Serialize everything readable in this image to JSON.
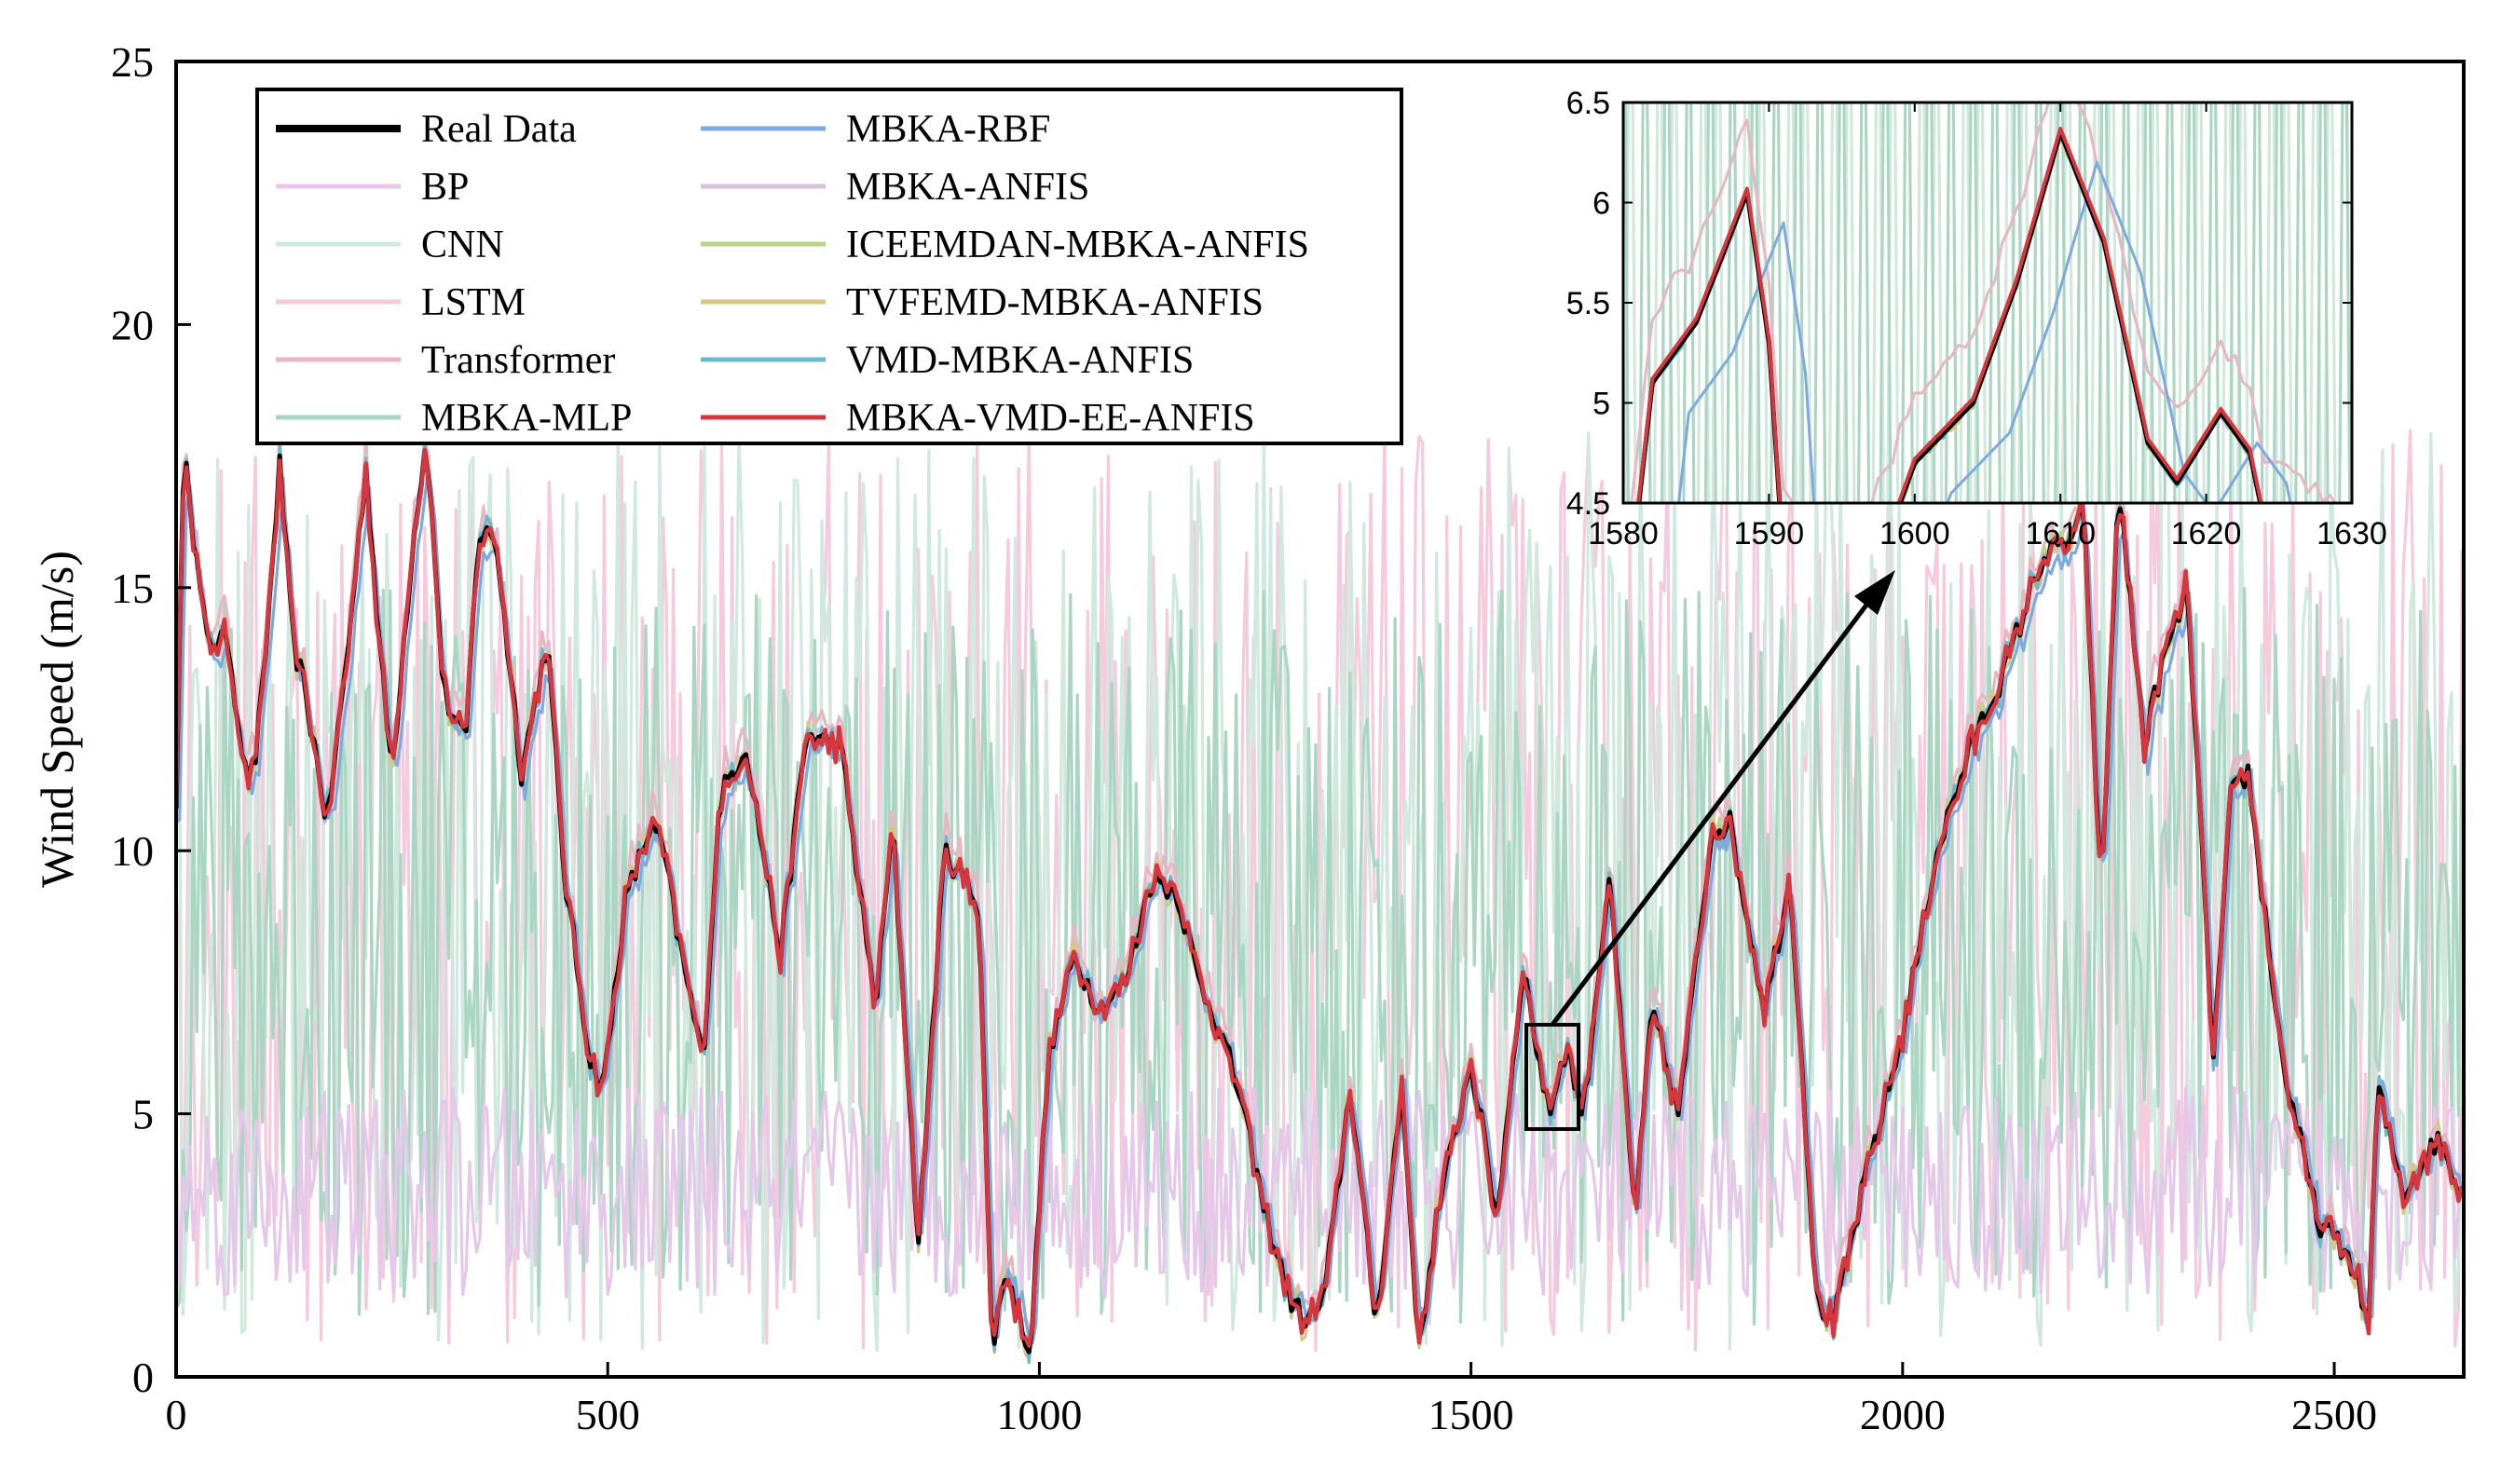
{
  "chart_data": {
    "type": "line",
    "title": "",
    "xlabel": "",
    "ylabel": "Wind Speed (m/s)",
    "xlim": [
      0,
      2650
    ],
    "ylim": [
      0,
      25
    ],
    "x_ticks": [
      "0",
      "500",
      "1000",
      "1500",
      "2000",
      "2500"
    ],
    "y_ticks": [
      "0",
      "5",
      "10",
      "15",
      "20",
      "25"
    ],
    "series": [
      {
        "name": "Real Data",
        "color": "#000000",
        "kind": "real"
      },
      {
        "name": "BP",
        "color": "#e5c7ea",
        "kind": "noise_low"
      },
      {
        "name": "CNN",
        "color": "#cfe9de",
        "kind": "noise_full"
      },
      {
        "name": "LSTM",
        "color": "#f6c9dc",
        "kind": "noise_full"
      },
      {
        "name": "Transformer",
        "color": "#e7b6c3",
        "kind": "offset"
      },
      {
        "name": "MBKA-MLP",
        "color": "#a9d6c3",
        "kind": "noise_mid"
      },
      {
        "name": "MBKA-RBF",
        "color": "#7ea9de",
        "kind": "lag"
      },
      {
        "name": "MBKA-ANFIS",
        "color": "#d7c1d9",
        "kind": "close"
      },
      {
        "name": "ICEEMDAN-MBKA-ANFIS",
        "color": "#b8d486",
        "kind": "close"
      },
      {
        "name": "TVFEMD-MBKA-ANFIS",
        "color": "#d8c685",
        "kind": "close"
      },
      {
        "name": "VMD-MBKA-ANFIS",
        "color": "#6cb9cc",
        "kind": "close"
      },
      {
        "name": "MBKA-VMD-EE-ANFIS",
        "color": "#d6373e",
        "kind": "best"
      }
    ],
    "real_data_keypoints": {
      "x": [
        0,
        10,
        20,
        35,
        60,
        80,
        90,
        100,
        120,
        135,
        150,
        175,
        200,
        220,
        235,
        250,
        275,
        290,
        310,
        335,
        350,
        370,
        400,
        430,
        450,
        480,
        495,
        520,
        550,
        565,
        580,
        610,
        630,
        660,
        700,
        730,
        770,
        810,
        830,
        860,
        890,
        930,
        945,
        960,
        990,
        1010,
        1040,
        1070,
        1100,
        1130,
        1160,
        1185,
        1200,
        1230,
        1260,
        1290,
        1310,
        1330,
        1360,
        1390,
        1420,
        1440,
        1460,
        1500,
        1530,
        1560,
        1590,
        1610,
        1630,
        1660,
        1690,
        1710,
        1740,
        1780,
        1800,
        1840,
        1870,
        1900,
        1920,
        1960,
        2000,
        2040,
        2080,
        2120,
        2160,
        2200,
        2210,
        2230,
        2250,
        2280,
        2300,
        2330,
        2360,
        2380,
        2400,
        2440,
        2480,
        2520,
        2540,
        2550,
        2580,
        2620,
        2650
      ],
      "y": [
        11,
        18,
        16,
        14,
        14,
        11.5,
        11.5,
        13,
        17.3,
        14,
        13,
        10.5,
        14,
        17.3,
        14,
        11.5,
        16,
        17.8,
        13,
        12,
        16,
        16,
        11.5,
        14,
        9.5,
        6,
        5.5,
        9,
        10.5,
        10,
        8.5,
        6,
        11,
        12,
        8,
        12.2,
        12,
        7,
        10.5,
        2.5,
        10,
        9,
        0.5,
        2,
        0.5,
        6,
        8,
        7,
        7.5,
        9.5,
        9.2,
        7.5,
        7,
        5.5,
        3.2,
        1.5,
        1,
        1.5,
        5.5,
        1,
        5.5,
        0.5,
        3,
        6,
        3,
        7.8,
        5,
        6.3,
        5,
        9.5,
        3,
        7,
        5,
        10.5,
        10.5,
        7,
        9.5,
        1.5,
        1,
        4,
        6.5,
        10,
        12,
        13.5,
        15.5,
        16,
        16.5,
        9,
        17,
        12,
        13.5,
        15,
        6,
        11,
        11.5,
        6,
        3,
        2.2,
        1,
        5.5,
        3.5,
        4.5,
        3.5
      ]
    },
    "inset": {
      "xlim": [
        1580,
        1630
      ],
      "ylim": [
        4.5,
        6.5
      ],
      "x_ticks": [
        "1580",
        "1590",
        "1600",
        "1610",
        "1620",
        "1630"
      ],
      "y_ticks": [
        "4.5",
        "5",
        "5.5",
        "6",
        "6.5"
      ],
      "real_data_keypoints": {
        "x": [
          1580,
          1582,
          1585,
          1588.5,
          1590,
          1591,
          1595,
          1598,
          1600,
          1604,
          1607,
          1610,
          1613,
          1616,
          1618,
          1621,
          1623,
          1624,
          1630
        ],
        "y": [
          3.8,
          5.1,
          5.4,
          6.05,
          5.3,
          4.2,
          3.9,
          4.3,
          4.7,
          5.0,
          5.6,
          6.35,
          5.8,
          4.8,
          4.6,
          4.95,
          4.75,
          4.4,
          4.1
        ]
      }
    },
    "legend_position": "top-left"
  }
}
